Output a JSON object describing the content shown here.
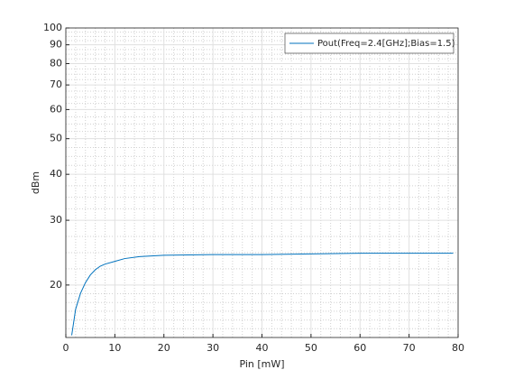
{
  "chart_data": {
    "type": "line",
    "x_label": "Pin [mW]",
    "y_label": "dBm",
    "x": [
      1.2,
      2,
      3,
      4,
      5,
      6,
      7,
      8,
      10,
      12,
      15,
      20,
      30,
      40,
      50,
      60,
      70,
      79
    ],
    "series": [
      {
        "name": "Pout(Freq=2.4[GHz];Bias=1.5)",
        "color": "#0072bd",
        "values": [
          14.6,
          17.2,
          19,
          20.3,
          21.3,
          22,
          22.5,
          22.8,
          23.2,
          23.6,
          23.9,
          24.1,
          24.2,
          24.2,
          24.3,
          24.4,
          24.4,
          24.4
        ]
      }
    ],
    "xlim": [
      0,
      80
    ],
    "xticks": [
      0,
      10,
      20,
      30,
      40,
      50,
      60,
      70,
      80
    ],
    "ylim": [
      14.4,
      100
    ],
    "yticks": [
      20,
      30,
      40,
      50,
      60,
      70,
      80,
      90,
      100
    ],
    "y_scale": "log",
    "grid": true,
    "minor_grid": true,
    "legend": "top-right"
  }
}
